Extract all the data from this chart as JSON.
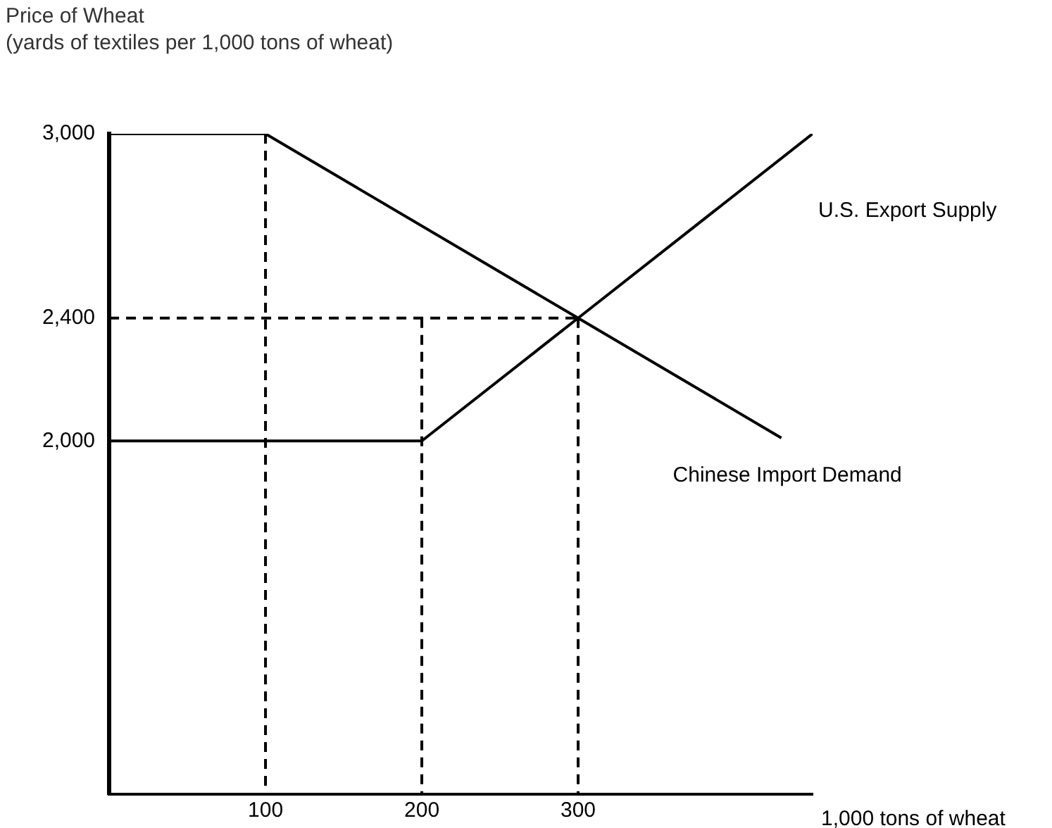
{
  "chart_data": {
    "type": "line",
    "ylabel": "Price of Wheat\n(yards of textiles per 1,000 tons of wheat)",
    "xlabel": "1,000 tons of wheat",
    "xlim": [
      0,
      450
    ],
    "xticks": [
      100,
      200,
      300
    ],
    "ylim": [
      850,
      3000
    ],
    "yticks": [
      {
        "value": 2000,
        "label": "2,000"
      },
      {
        "value": 2400,
        "label": "2,400"
      },
      {
        "value": 3000,
        "label": "3,000"
      }
    ],
    "grid": false,
    "legend": false,
    "marker": "none",
    "series": [
      {
        "name": "U.S. Export Supply",
        "color": "#000000",
        "x": [
          0,
          200,
          300,
          450
        ],
        "values": [
          2000,
          2000,
          2400,
          3000
        ]
      },
      {
        "name": "Chinese Import Demand",
        "color": "#000000",
        "x": [
          0,
          100,
          300,
          430
        ],
        "values": [
          3000,
          3000,
          2400,
          2010
        ]
      },
      {
        "color": "#000000",
        "line_style": "dashed",
        "x": [
          100,
          100
        ],
        "values": [
          3000,
          850
        ]
      },
      {
        "color": "#000000",
        "line_style": "dashed",
        "x": [
          200,
          200
        ],
        "values": [
          2400,
          850
        ]
      },
      {
        "color": "#000000",
        "line_style": "dashed",
        "x": [
          300,
          300
        ],
        "values": [
          2400,
          850
        ]
      },
      {
        "color": "#000000",
        "line_style": "dashed",
        "x": [
          0,
          300
        ],
        "values": [
          2400,
          2400
        ]
      }
    ]
  }
}
